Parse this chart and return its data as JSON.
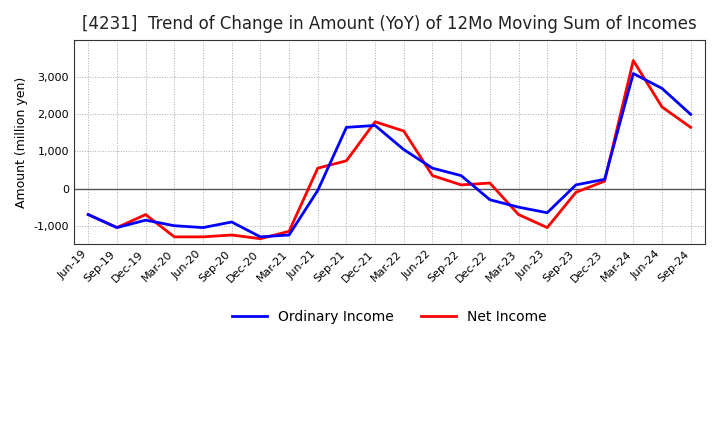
{
  "title": "[4231]  Trend of Change in Amount (YoY) of 12Mo Moving Sum of Incomes",
  "ylabel": "Amount (million yen)",
  "x_labels": [
    "Jun-19",
    "Sep-19",
    "Dec-19",
    "Mar-20",
    "Jun-20",
    "Sep-20",
    "Dec-20",
    "Mar-21",
    "Jun-21",
    "Sep-21",
    "Dec-21",
    "Mar-22",
    "Jun-22",
    "Sep-22",
    "Dec-22",
    "Mar-23",
    "Jun-23",
    "Sep-23",
    "Dec-23",
    "Mar-24",
    "Jun-24",
    "Sep-24"
  ],
  "ordinary_income": [
    -700,
    -1050,
    -850,
    -1000,
    -1050,
    -900,
    -1300,
    -1250,
    -50,
    1650,
    1700,
    1050,
    550,
    350,
    -300,
    -500,
    -650,
    100,
    250,
    3100,
    2700,
    2000
  ],
  "net_income": [
    -700,
    -1050,
    -700,
    -1300,
    -1300,
    -1250,
    -1350,
    -1150,
    550,
    750,
    1800,
    1550,
    350,
    100,
    150,
    -700,
    -1050,
    -100,
    200,
    3450,
    2200,
    1650
  ],
  "ordinary_color": "#0000ff",
  "net_color": "#ff0000",
  "ylim": [
    -1500,
    4000
  ],
  "yticks": [
    -1000,
    0,
    1000,
    2000,
    3000
  ],
  "grid_color": "#aaaaaa",
  "grid_style": "dotted",
  "background_color": "#ffffff",
  "title_fontsize": 12,
  "axis_fontsize": 9,
  "tick_fontsize": 8,
  "legend_fontsize": 10,
  "title_color": "#222222",
  "line_width": 2.0
}
